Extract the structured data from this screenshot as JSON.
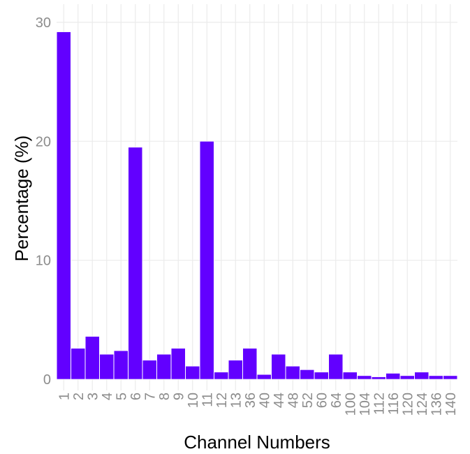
{
  "chart_data": {
    "type": "bar",
    "title": "",
    "xlabel": "Channel Numbers",
    "ylabel": "Percentage (%)",
    "categories": [
      "1",
      "2",
      "3",
      "4",
      "5",
      "6",
      "7",
      "8",
      "9",
      "10",
      "11",
      "12",
      "13",
      "36",
      "40",
      "44",
      "48",
      "52",
      "60",
      "64",
      "100",
      "104",
      "112",
      "116",
      "120",
      "124",
      "136",
      "140"
    ],
    "values": [
      29.2,
      2.6,
      3.6,
      2.1,
      2.4,
      19.5,
      1.6,
      2.1,
      2.6,
      1.1,
      20.0,
      0.6,
      1.6,
      2.6,
      0.4,
      2.1,
      1.1,
      0.8,
      0.6,
      2.1,
      0.6,
      0.3,
      0.2,
      0.5,
      0.3,
      0.6,
      0.3,
      0.3
    ],
    "ylim": [
      0,
      31
    ],
    "yticks": [
      0,
      10,
      20,
      30
    ],
    "grid": true,
    "colors": {
      "bar": "#6200ff",
      "bar_edge": "#ffffff",
      "grid": "#ebebeb",
      "tick_label": "#8c8c8c"
    }
  }
}
